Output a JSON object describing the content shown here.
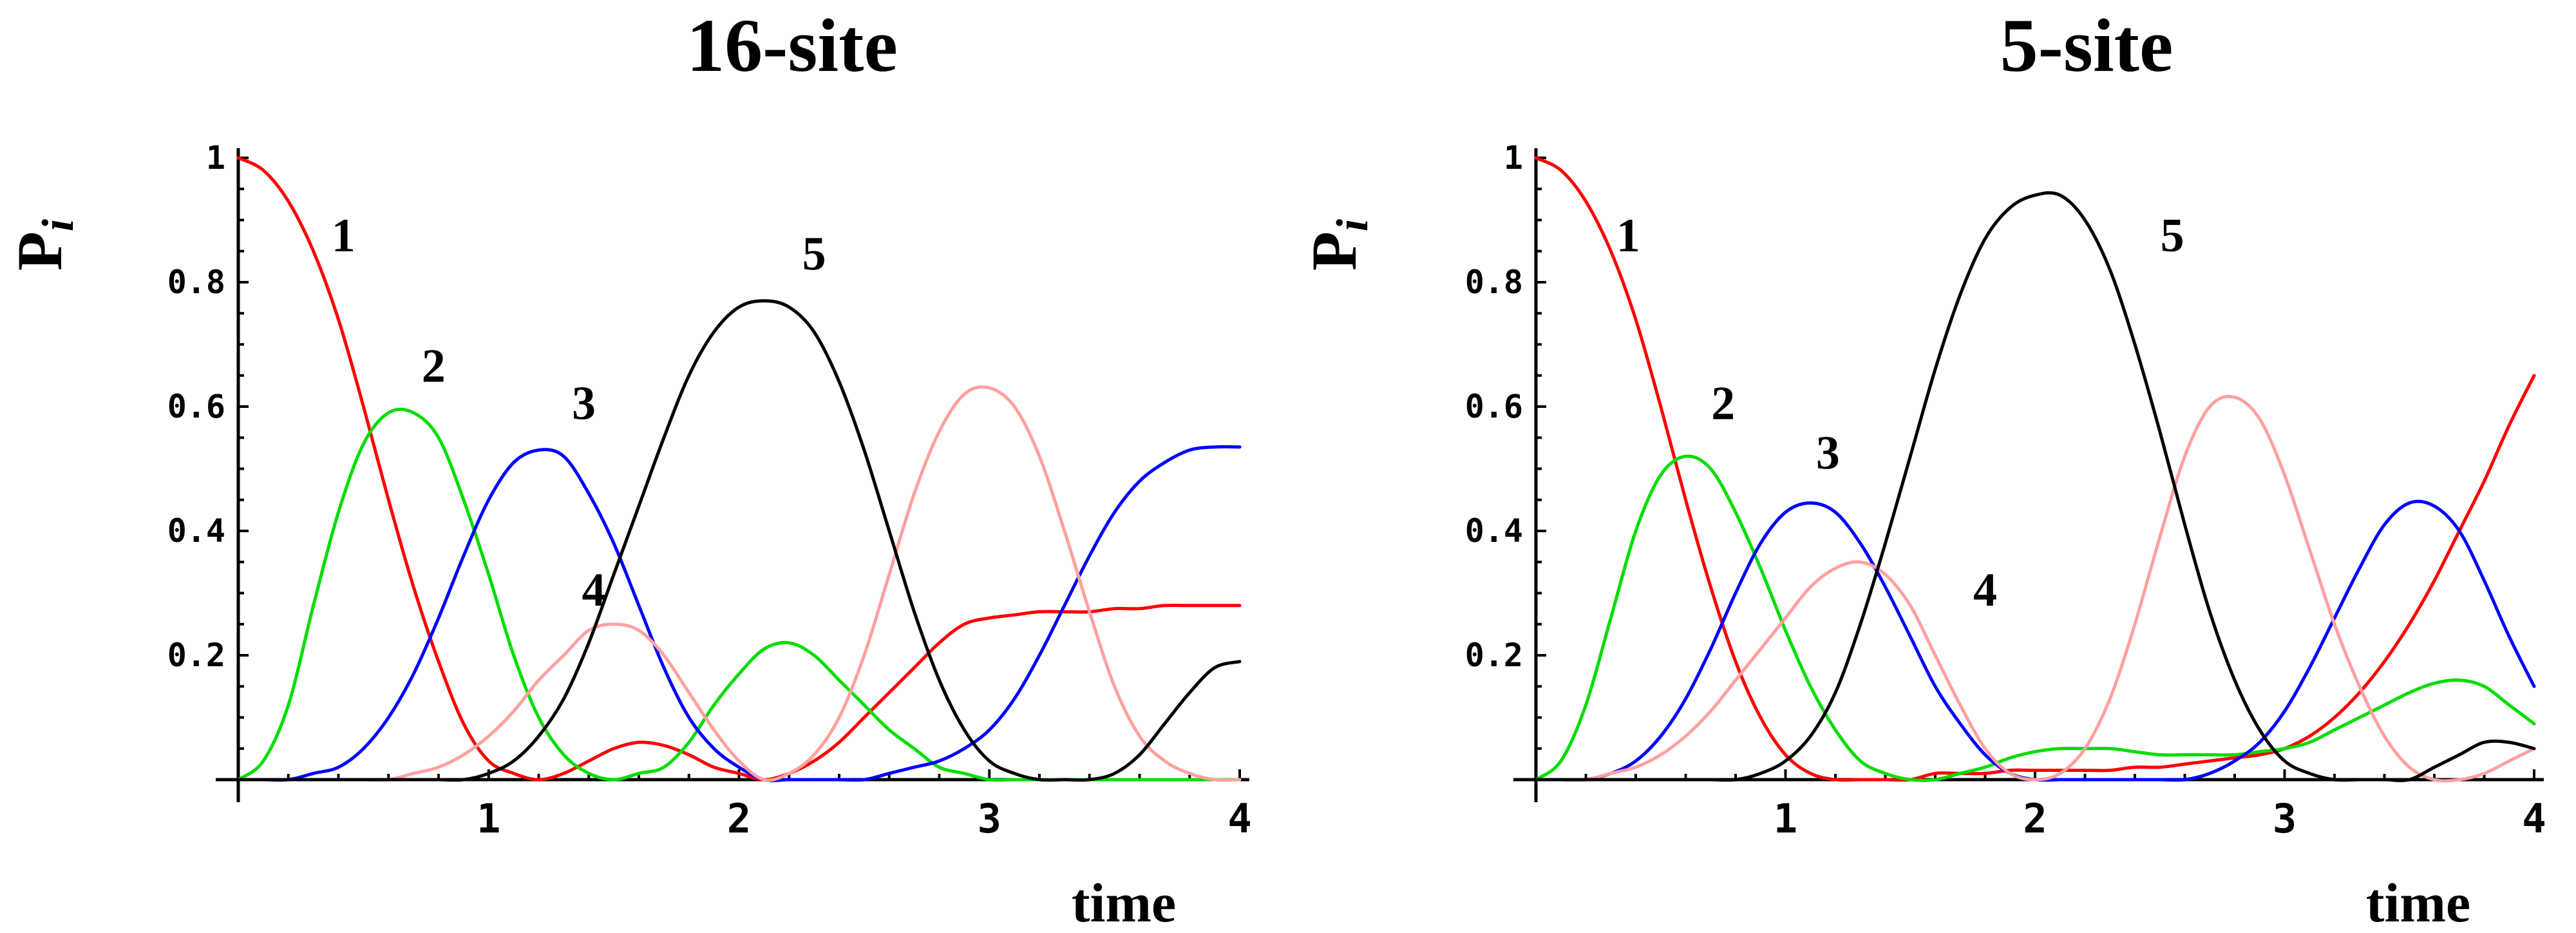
{
  "chart_data": [
    {
      "type": "line",
      "title": "16-site",
      "xlabel": "time",
      "ylabel": "P_i",
      "xlim": [
        0,
        4
      ],
      "ylim": [
        0,
        1
      ],
      "xticks": [
        "1",
        "2",
        "3",
        "4"
      ],
      "yticks": [
        "1",
        "0.8",
        "0.6",
        "0.4",
        "0.2"
      ],
      "grid": false,
      "series": [
        {
          "name": "1",
          "color": "#ff0000",
          "x": [
            0,
            0.1,
            0.2,
            0.3,
            0.4,
            0.5,
            0.6,
            0.7,
            0.8,
            0.9,
            1.0,
            1.1,
            1.2,
            1.3,
            1.4,
            1.5,
            1.6,
            1.7,
            1.8,
            1.9,
            2.0,
            2.1,
            2.2,
            2.3,
            2.4,
            2.5,
            2.6,
            2.7,
            2.8,
            2.9,
            3.0,
            3.1,
            3.2,
            3.3,
            3.4,
            3.5,
            3.6,
            3.7,
            3.8,
            3.9,
            4.0
          ],
          "y": [
            1.0,
            0.98,
            0.93,
            0.85,
            0.74,
            0.6,
            0.45,
            0.31,
            0.19,
            0.09,
            0.03,
            0.01,
            0.0,
            0.01,
            0.03,
            0.05,
            0.06,
            0.055,
            0.04,
            0.02,
            0.01,
            0.0,
            0.01,
            0.03,
            0.06,
            0.1,
            0.14,
            0.18,
            0.22,
            0.25,
            0.26,
            0.265,
            0.27,
            0.27,
            0.27,
            0.275,
            0.275,
            0.28,
            0.28,
            0.28,
            0.28
          ]
        },
        {
          "name": "2",
          "color": "#00dd00",
          "x": [
            0,
            0.1,
            0.2,
            0.3,
            0.4,
            0.5,
            0.6,
            0.7,
            0.8,
            0.9,
            1.0,
            1.1,
            1.2,
            1.3,
            1.4,
            1.5,
            1.6,
            1.7,
            1.8,
            1.9,
            2.0,
            2.1,
            2.2,
            2.3,
            2.4,
            2.5,
            2.6,
            2.7,
            2.8,
            2.9,
            3.0,
            3.1,
            3.2,
            3.3,
            3.4,
            3.5,
            3.6,
            3.7,
            3.8,
            3.9,
            4.0
          ],
          "y": [
            0.0,
            0.03,
            0.12,
            0.28,
            0.43,
            0.54,
            0.59,
            0.59,
            0.55,
            0.45,
            0.33,
            0.2,
            0.1,
            0.04,
            0.01,
            0.0,
            0.01,
            0.02,
            0.06,
            0.12,
            0.17,
            0.21,
            0.22,
            0.2,
            0.16,
            0.12,
            0.08,
            0.05,
            0.02,
            0.01,
            0.0,
            0.0,
            0.0,
            0.0,
            0.0,
            0.0,
            0.0,
            0.0,
            0.0,
            0.0,
            0.0
          ]
        },
        {
          "name": "3",
          "color": "#0000ff",
          "x": [
            0,
            0.1,
            0.2,
            0.3,
            0.4,
            0.5,
            0.6,
            0.7,
            0.8,
            0.9,
            1.0,
            1.1,
            1.2,
            1.3,
            1.4,
            1.5,
            1.6,
            1.7,
            1.8,
            1.9,
            2.0,
            2.1,
            2.2,
            2.3,
            2.4,
            2.5,
            2.6,
            2.7,
            2.8,
            2.9,
            3.0,
            3.1,
            3.2,
            3.3,
            3.4,
            3.5,
            3.6,
            3.7,
            3.8,
            3.9,
            4.0
          ],
          "y": [
            0.0,
            0.0,
            0.0,
            0.01,
            0.02,
            0.05,
            0.1,
            0.17,
            0.26,
            0.36,
            0.45,
            0.51,
            0.53,
            0.52,
            0.46,
            0.38,
            0.28,
            0.18,
            0.1,
            0.05,
            0.02,
            0.0,
            0.0,
            0.0,
            0.0,
            0.0,
            0.01,
            0.02,
            0.03,
            0.05,
            0.08,
            0.13,
            0.2,
            0.28,
            0.36,
            0.43,
            0.48,
            0.51,
            0.53,
            0.535,
            0.535
          ]
        },
        {
          "name": "4",
          "color": "#ffa0a0",
          "x": [
            0,
            0.1,
            0.2,
            0.3,
            0.4,
            0.5,
            0.6,
            0.7,
            0.8,
            0.9,
            1.0,
            1.1,
            1.2,
            1.3,
            1.4,
            1.5,
            1.6,
            1.7,
            1.8,
            1.9,
            2.0,
            2.1,
            2.2,
            2.3,
            2.4,
            2.5,
            2.6,
            2.7,
            2.8,
            2.9,
            3.0,
            3.1,
            3.2,
            3.3,
            3.4,
            3.5,
            3.6,
            3.7,
            3.8,
            3.9,
            4.0
          ],
          "y": [
            0.0,
            0.0,
            0.0,
            0.0,
            0.0,
            0.0,
            0.0,
            0.01,
            0.02,
            0.04,
            0.07,
            0.11,
            0.16,
            0.2,
            0.24,
            0.25,
            0.24,
            0.2,
            0.14,
            0.08,
            0.03,
            0.0,
            0.01,
            0.04,
            0.1,
            0.2,
            0.33,
            0.46,
            0.56,
            0.62,
            0.63,
            0.6,
            0.52,
            0.4,
            0.27,
            0.15,
            0.07,
            0.03,
            0.01,
            0.0,
            0.0
          ]
        },
        {
          "name": "5",
          "color": "#000000",
          "x": [
            0,
            0.1,
            0.2,
            0.3,
            0.4,
            0.5,
            0.6,
            0.7,
            0.8,
            0.9,
            1.0,
            1.1,
            1.2,
            1.3,
            1.4,
            1.5,
            1.6,
            1.7,
            1.8,
            1.9,
            2.0,
            2.1,
            2.2,
            2.3,
            2.4,
            2.5,
            2.6,
            2.7,
            2.8,
            2.9,
            3.0,
            3.1,
            3.2,
            3.3,
            3.4,
            3.5,
            3.6,
            3.7,
            3.8,
            3.9,
            4.0
          ],
          "y": [
            0.0,
            0.0,
            0.0,
            0.0,
            0.0,
            0.0,
            0.0,
            0.0,
            0.0,
            0.0,
            0.01,
            0.03,
            0.07,
            0.13,
            0.22,
            0.33,
            0.44,
            0.55,
            0.65,
            0.72,
            0.76,
            0.77,
            0.76,
            0.72,
            0.64,
            0.53,
            0.4,
            0.27,
            0.16,
            0.08,
            0.03,
            0.01,
            0.0,
            0.0,
            0.0,
            0.01,
            0.04,
            0.09,
            0.14,
            0.18,
            0.19
          ]
        }
      ],
      "annotations": [
        {
          "text": "1",
          "x": 0.42,
          "y": 0.85
        },
        {
          "text": "2",
          "x": 0.78,
          "y": 0.64
        },
        {
          "text": "3",
          "x": 1.38,
          "y": 0.58
        },
        {
          "text": "4",
          "x": 1.42,
          "y": 0.28
        },
        {
          "text": "5",
          "x": 2.3,
          "y": 0.82
        }
      ]
    },
    {
      "type": "line",
      "title": "5-site",
      "xlabel": "time",
      "ylabel": "P_i",
      "xlim": [
        0,
        4
      ],
      "ylim": [
        0,
        1
      ],
      "xticks": [
        "1",
        "2",
        "3",
        "4"
      ],
      "yticks": [
        "1",
        "0.8",
        "0.6",
        "0.4",
        "0.2"
      ],
      "grid": false,
      "series": [
        {
          "name": "1",
          "color": "#ff0000",
          "x": [
            0,
            0.1,
            0.2,
            0.3,
            0.4,
            0.5,
            0.6,
            0.7,
            0.8,
            0.9,
            1.0,
            1.1,
            1.2,
            1.3,
            1.4,
            1.5,
            1.6,
            1.7,
            1.8,
            1.9,
            2.0,
            2.1,
            2.2,
            2.3,
            2.4,
            2.5,
            2.6,
            2.7,
            2.8,
            2.9,
            3.0,
            3.1,
            3.2,
            3.3,
            3.4,
            3.5,
            3.6,
            3.7,
            3.8,
            3.9,
            4.0
          ],
          "y": [
            1.0,
            0.98,
            0.93,
            0.85,
            0.74,
            0.6,
            0.45,
            0.31,
            0.19,
            0.1,
            0.04,
            0.01,
            0.0,
            0.0,
            0.0,
            0.0,
            0.01,
            0.01,
            0.01,
            0.015,
            0.015,
            0.015,
            0.015,
            0.015,
            0.02,
            0.02,
            0.025,
            0.03,
            0.035,
            0.04,
            0.05,
            0.07,
            0.1,
            0.14,
            0.19,
            0.25,
            0.32,
            0.4,
            0.48,
            0.57,
            0.65
          ]
        },
        {
          "name": "2",
          "color": "#00dd00",
          "x": [
            0,
            0.1,
            0.2,
            0.3,
            0.4,
            0.5,
            0.6,
            0.7,
            0.8,
            0.9,
            1.0,
            1.1,
            1.2,
            1.3,
            1.4,
            1.5,
            1.6,
            1.7,
            1.8,
            1.9,
            2.0,
            2.1,
            2.2,
            2.3,
            2.4,
            2.5,
            2.6,
            2.7,
            2.8,
            2.9,
            3.0,
            3.1,
            3.2,
            3.3,
            3.4,
            3.5,
            3.6,
            3.7,
            3.8,
            3.9,
            4.0
          ],
          "y": [
            0.0,
            0.03,
            0.12,
            0.26,
            0.4,
            0.49,
            0.52,
            0.5,
            0.43,
            0.34,
            0.24,
            0.15,
            0.08,
            0.03,
            0.01,
            0.0,
            0.0,
            0.01,
            0.02,
            0.035,
            0.045,
            0.05,
            0.05,
            0.05,
            0.045,
            0.04,
            0.04,
            0.04,
            0.04,
            0.045,
            0.05,
            0.06,
            0.08,
            0.1,
            0.12,
            0.14,
            0.155,
            0.16,
            0.15,
            0.12,
            0.09
          ]
        },
        {
          "name": "3",
          "color": "#0000ff",
          "x": [
            0,
            0.1,
            0.2,
            0.3,
            0.4,
            0.5,
            0.6,
            0.7,
            0.8,
            0.9,
            1.0,
            1.1,
            1.2,
            1.3,
            1.4,
            1.5,
            1.6,
            1.7,
            1.8,
            1.9,
            2.0,
            2.1,
            2.2,
            2.3,
            2.4,
            2.5,
            2.6,
            2.7,
            2.8,
            2.9,
            3.0,
            3.1,
            3.2,
            3.3,
            3.4,
            3.5,
            3.6,
            3.7,
            3.8,
            3.9,
            4.0
          ],
          "y": [
            0.0,
            0.0,
            0.0,
            0.01,
            0.03,
            0.07,
            0.13,
            0.21,
            0.3,
            0.38,
            0.43,
            0.445,
            0.43,
            0.38,
            0.31,
            0.23,
            0.15,
            0.09,
            0.04,
            0.01,
            0.0,
            0.0,
            0.0,
            0.0,
            0.0,
            0.0,
            0.0,
            0.01,
            0.03,
            0.06,
            0.11,
            0.18,
            0.26,
            0.34,
            0.41,
            0.445,
            0.44,
            0.4,
            0.32,
            0.23,
            0.15
          ]
        },
        {
          "name": "4",
          "color": "#ffa0a0",
          "x": [
            0,
            0.1,
            0.2,
            0.3,
            0.4,
            0.5,
            0.6,
            0.7,
            0.8,
            0.9,
            1.0,
            1.1,
            1.2,
            1.3,
            1.4,
            1.5,
            1.6,
            1.7,
            1.8,
            1.9,
            2.0,
            2.1,
            2.2,
            2.3,
            2.4,
            2.5,
            2.6,
            2.7,
            2.8,
            2.9,
            3.0,
            3.1,
            3.2,
            3.3,
            3.4,
            3.5,
            3.6,
            3.7,
            3.8,
            3.9,
            4.0
          ],
          "y": [
            0.0,
            0.0,
            0.0,
            0.01,
            0.02,
            0.04,
            0.07,
            0.11,
            0.16,
            0.21,
            0.26,
            0.31,
            0.34,
            0.35,
            0.33,
            0.28,
            0.2,
            0.12,
            0.05,
            0.01,
            0.0,
            0.01,
            0.05,
            0.13,
            0.25,
            0.39,
            0.52,
            0.6,
            0.615,
            0.58,
            0.49,
            0.37,
            0.25,
            0.15,
            0.07,
            0.02,
            0.0,
            0.0,
            0.01,
            0.03,
            0.05
          ]
        },
        {
          "name": "5",
          "color": "#000000",
          "x": [
            0,
            0.1,
            0.2,
            0.3,
            0.4,
            0.5,
            0.6,
            0.7,
            0.8,
            0.9,
            1.0,
            1.1,
            1.2,
            1.3,
            1.4,
            1.5,
            1.6,
            1.7,
            1.8,
            1.9,
            2.0,
            2.1,
            2.2,
            2.3,
            2.4,
            2.5,
            2.6,
            2.7,
            2.8,
            2.9,
            3.0,
            3.1,
            3.2,
            3.3,
            3.4,
            3.5,
            3.6,
            3.7,
            3.8,
            3.9,
            4.0
          ],
          "y": [
            0.0,
            0.0,
            0.0,
            0.0,
            0.0,
            0.0,
            0.0,
            0.0,
            0.0,
            0.01,
            0.03,
            0.07,
            0.14,
            0.25,
            0.38,
            0.52,
            0.66,
            0.78,
            0.87,
            0.92,
            0.94,
            0.94,
            0.9,
            0.82,
            0.7,
            0.56,
            0.41,
            0.27,
            0.16,
            0.08,
            0.03,
            0.01,
            0.0,
            0.0,
            0.0,
            0.0,
            0.02,
            0.04,
            0.06,
            0.06,
            0.05
          ]
        }
      ],
      "annotations": [
        {
          "text": "1",
          "x": 0.37,
          "y": 0.85
        },
        {
          "text": "2",
          "x": 0.75,
          "y": 0.58
        },
        {
          "text": "3",
          "x": 1.17,
          "y": 0.5
        },
        {
          "text": "4",
          "x": 1.8,
          "y": 0.28
        },
        {
          "text": "5",
          "x": 2.55,
          "y": 0.85
        }
      ]
    }
  ]
}
